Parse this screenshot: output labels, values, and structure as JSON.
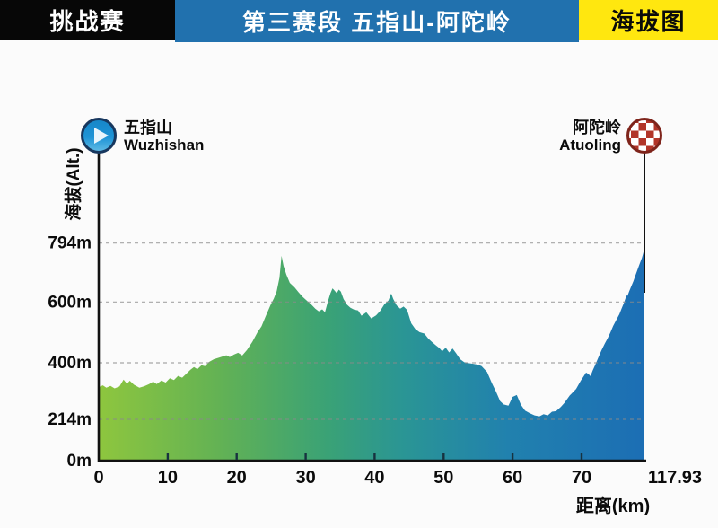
{
  "header": {
    "left_badge": "挑战赛",
    "title": "第三赛段  五指山-阿陀岭",
    "right_badge": "海拔图"
  },
  "markers": {
    "start": {
      "name_zh": "五指山",
      "name_en": "Wuzhishan",
      "icon": "play-circle-icon"
    },
    "finish": {
      "name_zh": "阿陀岭",
      "name_en": "Atuoling",
      "icon": "checkered-flag-circle-icon"
    }
  },
  "colors": {
    "banner_black": "#070707",
    "banner_blue": "#2171ae",
    "banner_yellow": "#ffe70f",
    "axis": "#111111",
    "gridline": "#8a8a8a",
    "start_circle_fill": "#1d93d6",
    "start_circle_ring": "#17375e",
    "finish_checker_red": "#b23529",
    "finish_circle_ring": "#7e241b"
  },
  "chart_data": {
    "type": "area",
    "title": "第三赛段 五指山-阿陀岭 海拔图",
    "xlabel": "距离(km)",
    "ylabel": "海拔(Alt.)",
    "x_ticks": [
      0,
      10,
      20,
      30,
      40,
      50,
      60,
      70,
      117.93
    ],
    "x_tick_labels": [
      "0",
      "10",
      "20",
      "30",
      "40",
      "50",
      "60",
      "70",
      "117.93"
    ],
    "y_ticks": [
      794,
      600,
      400,
      214,
      0
    ],
    "y_tick_labels": [
      "794m",
      "600m",
      "400m",
      "214m",
      "0m"
    ],
    "total_distance_km": 117.93,
    "x_axis_note": "linear 0-70 km, compressed 70-117.93 km",
    "y_axis_note": "compressed below 214 m",
    "grid": "dashed horizontal at 794/600/400/214 m",
    "legend_position": "none",
    "area_gradient": [
      {
        "offset": 0.0,
        "color": "#8ec63e"
      },
      {
        "offset": 0.22,
        "color": "#63b254"
      },
      {
        "offset": 0.42,
        "color": "#3aa276"
      },
      {
        "offset": 0.56,
        "color": "#2a9595"
      },
      {
        "offset": 0.75,
        "color": "#2181ae"
      },
      {
        "offset": 1.0,
        "color": "#1c6eb4"
      }
    ],
    "profile": [
      [
        0,
        320
      ],
      [
        0.6,
        326
      ],
      [
        1.1,
        318
      ],
      [
        1.7,
        324
      ],
      [
        2.3,
        316
      ],
      [
        3,
        322
      ],
      [
        3.6,
        345
      ],
      [
        4.1,
        331
      ],
      [
        4.5,
        341
      ],
      [
        5.1,
        328
      ],
      [
        5.9,
        318
      ],
      [
        6.6,
        323
      ],
      [
        7.3,
        330
      ],
      [
        7.9,
        338
      ],
      [
        8.4,
        330
      ],
      [
        9.1,
        342
      ],
      [
        9.7,
        335
      ],
      [
        10.3,
        349
      ],
      [
        10.9,
        343
      ],
      [
        11.5,
        357
      ],
      [
        12.1,
        351
      ],
      [
        12.7,
        364
      ],
      [
        13.3,
        377
      ],
      [
        13.8,
        386
      ],
      [
        14.3,
        379
      ],
      [
        14.9,
        392
      ],
      [
        15.4,
        389
      ],
      [
        16,
        403
      ],
      [
        16.7,
        412
      ],
      [
        17.6,
        418
      ],
      [
        18.5,
        425
      ],
      [
        19,
        419
      ],
      [
        19.6,
        427
      ],
      [
        20.2,
        433
      ],
      [
        20.8,
        424
      ],
      [
        21.5,
        442
      ],
      [
        22.3,
        470
      ],
      [
        23,
        500
      ],
      [
        23.6,
        520
      ],
      [
        24.2,
        553
      ],
      [
        24.9,
        590
      ],
      [
        25.4,
        612
      ],
      [
        25.8,
        636
      ],
      [
        26.2,
        680
      ],
      [
        26.5,
        752
      ],
      [
        26.8,
        718
      ],
      [
        27.2,
        690
      ],
      [
        27.7,
        663
      ],
      [
        28.4,
        648
      ],
      [
        29,
        631
      ],
      [
        29.6,
        616
      ],
      [
        30.2,
        604
      ],
      [
        30.8,
        592
      ],
      [
        31.4,
        578
      ],
      [
        31.9,
        569
      ],
      [
        32.4,
        576
      ],
      [
        32.8,
        566
      ],
      [
        33.2,
        600
      ],
      [
        33.6,
        629
      ],
      [
        33.9,
        645
      ],
      [
        34.2,
        637
      ],
      [
        34.5,
        629
      ],
      [
        34.8,
        641
      ],
      [
        35.1,
        634
      ],
      [
        35.5,
        610
      ],
      [
        36,
        591
      ],
      [
        36.5,
        581
      ],
      [
        37,
        575
      ],
      [
        37.6,
        572
      ],
      [
        38.1,
        555
      ],
      [
        38.8,
        566
      ],
      [
        39.5,
        546
      ],
      [
        40.2,
        556
      ],
      [
        40.8,
        571
      ],
      [
        41.4,
        592
      ],
      [
        42,
        605
      ],
      [
        42.4,
        628
      ],
      [
        42.7,
        610
      ],
      [
        43.2,
        589
      ],
      [
        43.7,
        578
      ],
      [
        44.2,
        585
      ],
      [
        44.7,
        574
      ],
      [
        45.3,
        530
      ],
      [
        45.9,
        511
      ],
      [
        46.5,
        501
      ],
      [
        47.2,
        496
      ],
      [
        47.8,
        479
      ],
      [
        48.3,
        469
      ],
      [
        48.8,
        459
      ],
      [
        49.4,
        448
      ],
      [
        49.8,
        438
      ],
      [
        50.3,
        450
      ],
      [
        50.8,
        434
      ],
      [
        51.3,
        447
      ],
      [
        51.8,
        432
      ],
      [
        52.4,
        412
      ],
      [
        53,
        402
      ],
      [
        53.6,
        399
      ],
      [
        54.3,
        397
      ],
      [
        55,
        394
      ],
      [
        55.5,
        389
      ],
      [
        56.3,
        370
      ],
      [
        57,
        333
      ],
      [
        57.6,
        305
      ],
      [
        58.2,
        274
      ],
      [
        58.7,
        263
      ],
      [
        59.4,
        259
      ],
      [
        60,
        288
      ],
      [
        60.6,
        294
      ],
      [
        61.2,
        262
      ],
      [
        61.8,
        243
      ],
      [
        62.5,
        234
      ],
      [
        63.2,
        227
      ],
      [
        63.9,
        224
      ],
      [
        64.5,
        231
      ],
      [
        65.1,
        227
      ],
      [
        65.7,
        239
      ],
      [
        66.3,
        241
      ],
      [
        67,
        255
      ],
      [
        67.5,
        268
      ],
      [
        68.3,
        293
      ],
      [
        69.2,
        314
      ],
      [
        69.9,
        342
      ],
      [
        71.5,
        355
      ],
      [
        73.4,
        368
      ],
      [
        75.5,
        362
      ],
      [
        76.8,
        356
      ],
      [
        78.5,
        375
      ],
      [
        80.3,
        392
      ],
      [
        82.5,
        415
      ],
      [
        85.1,
        441
      ],
      [
        87.5,
        462
      ],
      [
        89.9,
        481
      ],
      [
        92,
        500
      ],
      [
        94,
        521
      ],
      [
        96.5,
        541
      ],
      [
        98.8,
        560
      ],
      [
        100.5,
        578
      ],
      [
        102.2,
        596
      ],
      [
        103.5,
        612
      ],
      [
        104.3,
        622
      ],
      [
        105,
        620
      ],
      [
        106.3,
        635
      ],
      [
        107.7,
        650
      ],
      [
        109.5,
        668
      ],
      [
        111.1,
        688
      ],
      [
        112.8,
        708
      ],
      [
        114.5,
        728
      ],
      [
        116,
        745
      ],
      [
        117,
        760
      ],
      [
        117.93,
        776
      ]
    ]
  }
}
